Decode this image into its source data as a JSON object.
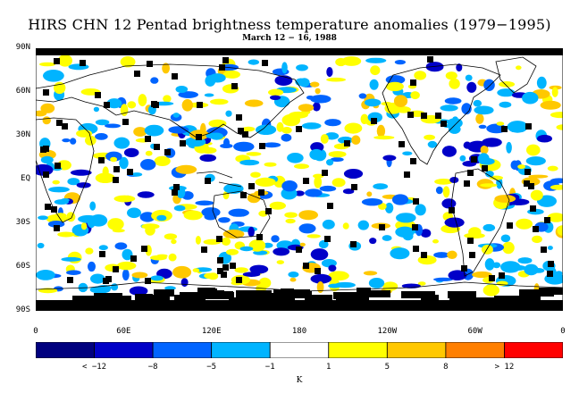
{
  "title": "HIRS CHN 12 Pentad brightness temperature anomalies (1979−1995)",
  "subtitle": "March 12 − 16, 1988",
  "lat_labels": [
    "90N",
    "60N",
    "30N",
    "EQ",
    "30S",
    "60S",
    "90S"
  ],
  "lon_labels": [
    "0",
    "60E",
    "120E",
    "180",
    "120W",
    "60W",
    "0"
  ],
  "legend": {
    "unit": "K",
    "colors": [
      "#00007f",
      "#0000c8",
      "#0064ff",
      "#00b4ff",
      "#ffffff",
      "#ffff00",
      "#ffc800",
      "#ff7f00",
      "#ff0000"
    ],
    "labels": [
      "< −12",
      "−8",
      "−5",
      "−1",
      "1",
      "5",
      "8",
      "> 12"
    ]
  },
  "missing_color": "#000000"
}
